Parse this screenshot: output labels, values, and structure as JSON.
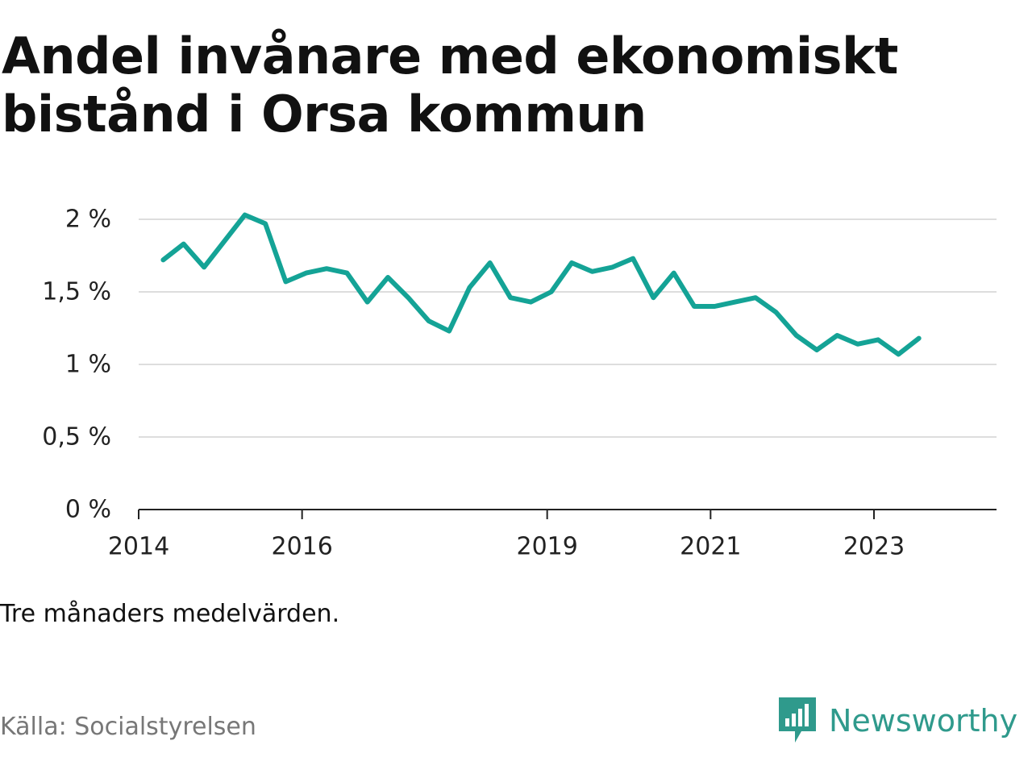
{
  "header": {
    "title_line1": "Andel invånare med ekonomiskt",
    "title_line2": "bistånd i Orsa kommun"
  },
  "note": "Tre månaders medelvärden.",
  "source": "Källa: Socialstyrelsen",
  "brand": {
    "name": "Newsworthy",
    "color": "#2f9a8c",
    "icon": "newsworthy-logo-icon"
  },
  "colors": {
    "line": "#14a396",
    "grid": "#dddddd",
    "axis": "#222222"
  },
  "chart_data": {
    "type": "line",
    "title": "Andel invånare med ekonomiskt bistånd i Orsa kommun",
    "xlabel": "",
    "ylabel": "",
    "xlim": [
      2014.0,
      2024.5
    ],
    "ylim": [
      0,
      2
    ],
    "y_ticks": [
      0,
      0.5,
      1,
      1.5,
      2
    ],
    "y_tick_labels": [
      "0 %",
      "0,5 %",
      "1 %",
      "1,5 %",
      "2 %"
    ],
    "x_ticks": [
      2014,
      2016,
      2019,
      2021,
      2023
    ],
    "x_tick_labels": [
      "2014",
      "2016",
      "2019",
      "2021",
      "2023"
    ],
    "grid": true,
    "series": [
      {
        "x": [
          2014.3,
          2014.55,
          2014.8,
          2015.05,
          2015.3,
          2015.55,
          2015.8,
          2016.05,
          2016.3,
          2016.55,
          2016.8,
          2017.05,
          2017.3,
          2017.55,
          2017.8,
          2018.05,
          2018.3,
          2018.55,
          2018.8,
          2019.05,
          2019.3,
          2019.55,
          2019.8,
          2020.05,
          2020.3,
          2020.55,
          2020.8,
          2021.05,
          2021.3,
          2021.55,
          2021.8,
          2022.05,
          2022.3,
          2022.55,
          2022.8,
          2023.05,
          2023.3,
          2023.55
        ],
        "values": [
          1.72,
          1.83,
          1.67,
          1.85,
          2.03,
          1.97,
          1.57,
          1.63,
          1.66,
          1.63,
          1.43,
          1.6,
          1.46,
          1.3,
          1.23,
          1.53,
          1.7,
          1.46,
          1.43,
          1.5,
          1.7,
          1.64,
          1.67,
          1.73,
          1.46,
          1.63,
          1.4,
          1.4,
          1.43,
          1.46,
          1.36,
          1.2,
          1.1,
          1.2,
          1.14,
          1.17,
          1.07,
          1.18
        ]
      }
    ]
  }
}
